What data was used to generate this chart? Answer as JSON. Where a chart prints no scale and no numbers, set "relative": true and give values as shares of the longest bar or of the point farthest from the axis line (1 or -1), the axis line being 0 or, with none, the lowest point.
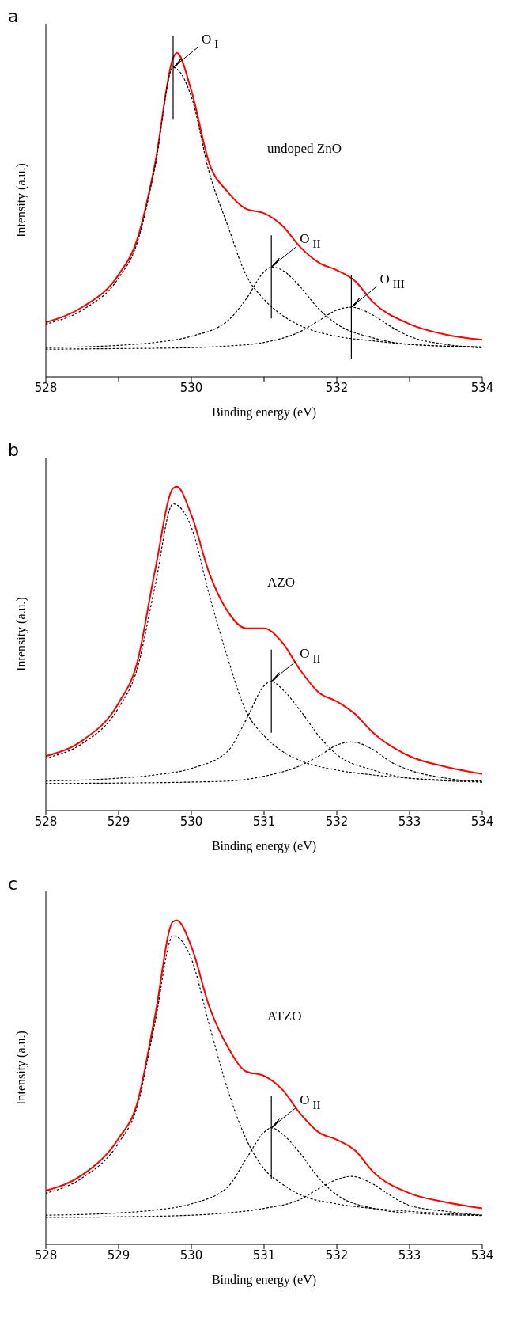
{
  "chart_data": [
    {
      "type": "line",
      "title": "a",
      "xlabel": "Binding energy (eV)",
      "ylabel": "Intensity (a.u.)",
      "relative": true,
      "xlim": [
        528,
        534
      ],
      "xticks": [
        528,
        {
          "value": 529,
          "label": null
        },
        530,
        {
          "value": 531,
          "label": null
        },
        532,
        {
          "value": 533,
          "label": null
        },
        534
      ],
      "series": [
        {
          "color": "#ff0000",
          "line_style": "solid",
          "x": [
            528,
            528.5,
            529,
            529.25,
            529.5,
            529.75,
            529.8,
            530,
            530.25,
            530.5,
            530.75,
            531,
            531.25,
            531.5,
            531.75,
            532,
            532.25,
            532.5,
            533,
            533.5,
            534
          ],
          "values": [
            0.168,
            0.215,
            0.315,
            0.42,
            0.657,
            0.984,
            1,
            0.884,
            0.657,
            0.571,
            0.519,
            0.505,
            0.467,
            0.4,
            0.353,
            0.329,
            0.296,
            0.23,
            0.163,
            0.13,
            0.114
          ]
        },
        {
          "color": "#000000",
          "line_style": "dotted",
          "x": [
            528,
            528.5,
            529,
            529.25,
            529.5,
            529.75,
            530,
            530.25,
            530.5,
            530.75,
            531,
            531.25,
            531.5,
            532,
            532.5,
            533,
            534
          ],
          "values": [
            0.163,
            0.206,
            0.305,
            0.41,
            0.647,
            0.955,
            0.865,
            0.628,
            0.467,
            0.315,
            0.239,
            0.19,
            0.158,
            0.125,
            0.111,
            0.1,
            0.092
          ]
        },
        {
          "color": "#000000",
          "line_style": "dotted",
          "x": [
            528,
            529,
            529.5,
            530,
            530.5,
            530.75,
            531,
            531.1,
            531.25,
            531.5,
            531.75,
            532,
            532.5,
            533,
            534
          ],
          "values": [
            0.09,
            0.097,
            0.106,
            0.125,
            0.173,
            0.239,
            0.324,
            0.339,
            0.329,
            0.277,
            0.21,
            0.163,
            0.12,
            0.1,
            0.092
          ]
        },
        {
          "color": "#000000",
          "line_style": "dotted",
          "x": [
            528,
            529,
            530,
            530.5,
            531,
            531.5,
            531.75,
            532,
            532.2,
            532.5,
            532.75,
            533,
            533.5,
            534
          ],
          "values": [
            0.085,
            0.087,
            0.09,
            0.095,
            0.106,
            0.14,
            0.173,
            0.206,
            0.215,
            0.19,
            0.154,
            0.125,
            0.1,
            0.089
          ]
        }
      ],
      "annotations": [
        {
          "text": "O$_{I}$",
          "x": 529.75,
          "y": 0.955
        },
        {
          "text": "O$_{II}$",
          "x": 531.1,
          "y": 0.339
        },
        {
          "text": "O$_{III}$",
          "x": 532.2,
          "y": 0.215
        },
        "undoped ZnO"
      ]
    },
    {
      "type": "line",
      "title": "b",
      "xlabel": "Binding energy (eV)",
      "ylabel": "Intensity (a.u.)",
      "relative": true,
      "xlim": [
        528,
        534
      ],
      "xticks": [
        528,
        529,
        530,
        531,
        532,
        533,
        534
      ],
      "series": [
        {
          "color": "#ff0000",
          "line_style": "solid",
          "x": [
            528,
            528.5,
            529,
            529.25,
            529.5,
            529.75,
            529.8,
            530,
            530.25,
            530.5,
            530.75,
            531,
            531.25,
            531.5,
            531.75,
            532,
            532.25,
            532.5,
            533,
            533.5,
            534
          ],
          "values": [
            0.168,
            0.216,
            0.332,
            0.452,
            0.74,
            0.995,
            1,
            0.913,
            0.731,
            0.615,
            0.563,
            0.563,
            0.519,
            0.433,
            0.365,
            0.337,
            0.298,
            0.24,
            0.168,
            0.135,
            0.113
          ]
        },
        {
          "color": "#000000",
          "line_style": "dotted",
          "x": [
            528,
            528.5,
            529,
            529.25,
            529.5,
            529.75,
            530,
            530.25,
            530.5,
            530.75,
            531,
            531.25,
            531.5,
            532,
            532.5,
            533,
            534
          ],
          "values": [
            0.162,
            0.207,
            0.317,
            0.433,
            0.692,
            0.947,
            0.875,
            0.663,
            0.471,
            0.308,
            0.231,
            0.183,
            0.154,
            0.125,
            0.11,
            0.1,
            0.091
          ]
        },
        {
          "color": "#000000",
          "line_style": "dotted",
          "x": [
            528,
            529,
            529.5,
            530,
            530.5,
            530.75,
            531,
            531.1,
            531.25,
            531.5,
            531.75,
            532,
            532.5,
            533,
            534
          ],
          "values": [
            0.091,
            0.1,
            0.11,
            0.13,
            0.183,
            0.279,
            0.385,
            0.399,
            0.375,
            0.308,
            0.231,
            0.173,
            0.125,
            0.1,
            0.088
          ]
        },
        {
          "color": "#000000",
          "line_style": "dotted",
          "x": [
            528,
            529,
            530,
            530.5,
            531,
            531.5,
            531.75,
            532,
            532.2,
            532.5,
            532.75,
            533,
            533.5,
            534
          ],
          "values": [
            0.084,
            0.085,
            0.088,
            0.091,
            0.106,
            0.139,
            0.168,
            0.202,
            0.212,
            0.188,
            0.149,
            0.125,
            0.1,
            0.088
          ]
        }
      ],
      "annotations": [
        {
          "text": "O$_{II}$",
          "x": 531.1,
          "y": 0.399
        },
        "AZO"
      ]
    },
    {
      "type": "line",
      "title": "c",
      "xlabel": "Binding energy (eV)",
      "ylabel": "Intensity (a.u.)",
      "relative": true,
      "xlim": [
        528,
        534
      ],
      "xticks": [
        528,
        529,
        530,
        531,
        532,
        533,
        534
      ],
      "series": [
        {
          "color": "#ff0000",
          "line_style": "solid",
          "x": [
            528,
            528.5,
            529,
            529.25,
            529.5,
            529.75,
            529.8,
            530,
            530.25,
            530.5,
            530.75,
            531,
            531.25,
            531.5,
            531.75,
            532,
            532.25,
            532.5,
            533,
            533.5,
            534
          ],
          "values": [
            0.166,
            0.214,
            0.327,
            0.431,
            0.704,
            0.997,
            1,
            0.92,
            0.732,
            0.61,
            0.534,
            0.52,
            0.478,
            0.403,
            0.346,
            0.323,
            0.29,
            0.224,
            0.158,
            0.13,
            0.111
          ]
        },
        {
          "color": "#000000",
          "line_style": "dotted",
          "x": [
            528,
            528.5,
            529,
            529.25,
            529.5,
            529.75,
            530,
            530.25,
            530.5,
            530.75,
            531,
            531.25,
            531.5,
            532,
            532.5,
            533,
            534
          ],
          "values": [
            0.158,
            0.205,
            0.313,
            0.421,
            0.685,
            0.953,
            0.882,
            0.675,
            0.478,
            0.327,
            0.233,
            0.186,
            0.153,
            0.125,
            0.111,
            0.102,
            0.09
          ]
        },
        {
          "color": "#000000",
          "line_style": "dotted",
          "x": [
            528,
            529,
            529.5,
            530,
            530.5,
            530.75,
            531,
            531.1,
            531.25,
            531.5,
            531.75,
            532,
            532.5,
            533,
            534
          ],
          "values": [
            0.09,
            0.097,
            0.106,
            0.125,
            0.177,
            0.262,
            0.346,
            0.36,
            0.341,
            0.28,
            0.205,
            0.153,
            0.111,
            0.097,
            0.089
          ]
        },
        {
          "color": "#000000",
          "line_style": "dotted",
          "x": [
            528,
            529,
            530,
            530.5,
            531,
            531.5,
            531.75,
            532,
            532.2,
            532.5,
            532.75,
            533,
            533.5,
            534
          ],
          "values": [
            0.083,
            0.085,
            0.09,
            0.097,
            0.111,
            0.139,
            0.172,
            0.2,
            0.21,
            0.186,
            0.149,
            0.12,
            0.102,
            0.09
          ]
        }
      ],
      "annotations": [
        {
          "text": "O$_{II}$",
          "x": 531.1,
          "y": 0.36
        },
        "ATZO"
      ]
    }
  ]
}
